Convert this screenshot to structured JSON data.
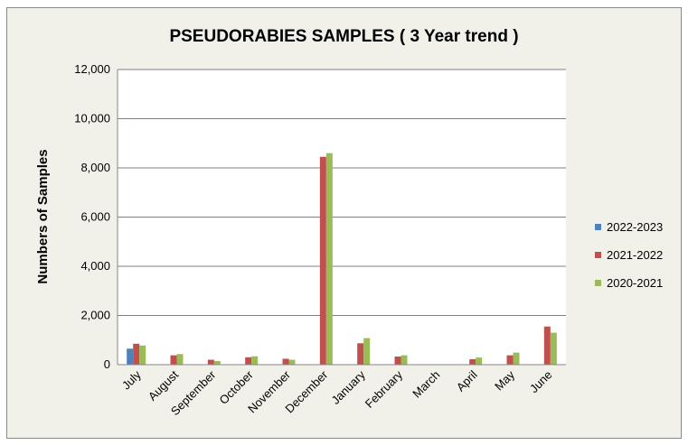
{
  "chart_data": {
    "type": "bar",
    "title": "PSEUDORABIES SAMPLES ( 3 Year trend )",
    "xlabel": "",
    "ylabel": "Numbers of Samples",
    "ylim": [
      0,
      12000
    ],
    "yticks": [
      "0",
      "2,000",
      "4,000",
      "6,000",
      "8,000",
      "10,000",
      "12,000"
    ],
    "ytick_values": [
      0,
      2000,
      4000,
      6000,
      8000,
      10000,
      12000
    ],
    "categories": [
      "July",
      "August",
      "September",
      "October",
      "November",
      "December",
      "January",
      "February",
      "March",
      "April",
      "May",
      "June"
    ],
    "series": [
      {
        "name": "2022-2023",
        "color": "#4f81bd",
        "values": [
          650,
          null,
          null,
          null,
          null,
          null,
          null,
          null,
          null,
          null,
          null,
          null
        ]
      },
      {
        "name": "2021-2022",
        "color": "#c0504d",
        "values": [
          850,
          380,
          200,
          300,
          240,
          8450,
          870,
          330,
          0,
          220,
          380,
          1550
        ]
      },
      {
        "name": "2020-2021",
        "color": "#9bbb59",
        "values": [
          780,
          430,
          150,
          340,
          200,
          8600,
          1080,
          380,
          0,
          290,
          490,
          1300
        ]
      }
    ],
    "grid": true,
    "legend_position": "right"
  }
}
